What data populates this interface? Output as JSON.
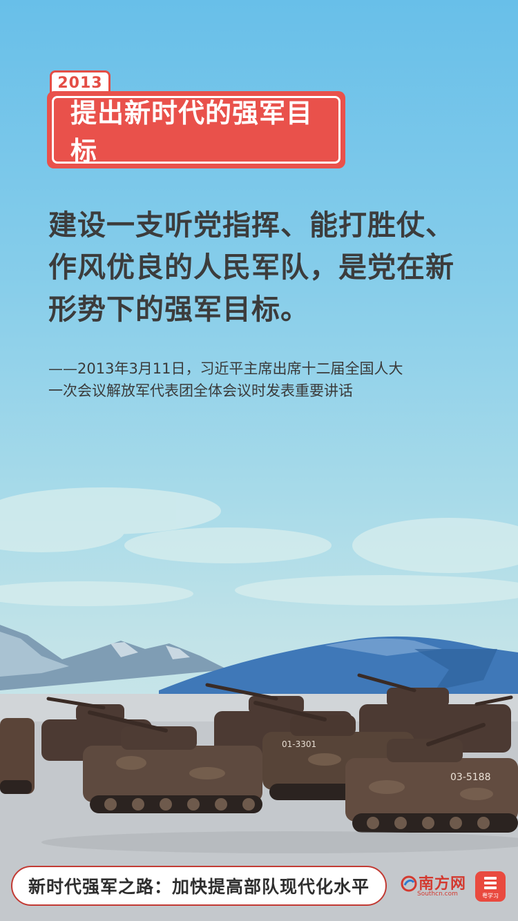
{
  "header": {
    "year": "2013",
    "title": "提出新时代的强军目标"
  },
  "quote": {
    "lines": [
      "建设一支听党指挥、能打胜仗、",
      "作风优良的人民军队，是党在新",
      "形势下的强军目标。"
    ],
    "source_lines": [
      "——2013年3月11日，习近平主席出席十二届全国人大",
      "一次会议解放军代表团全体会议时发表重要讲话"
    ]
  },
  "scene": {
    "vehicle_numbers": [
      "01-3301",
      "03-5188"
    ]
  },
  "footer": {
    "banner": "新时代强军之路：加快提高部队现代化水平",
    "logo_nanfang": "南方网",
    "logo_nanfang_domain": "Southcn.com",
    "logo_xuexi": "粤学习"
  },
  "colors": {
    "accent_red": "#e9514b",
    "sky_top": "#68bfe9",
    "text_dark": "#3c3c3c"
  }
}
